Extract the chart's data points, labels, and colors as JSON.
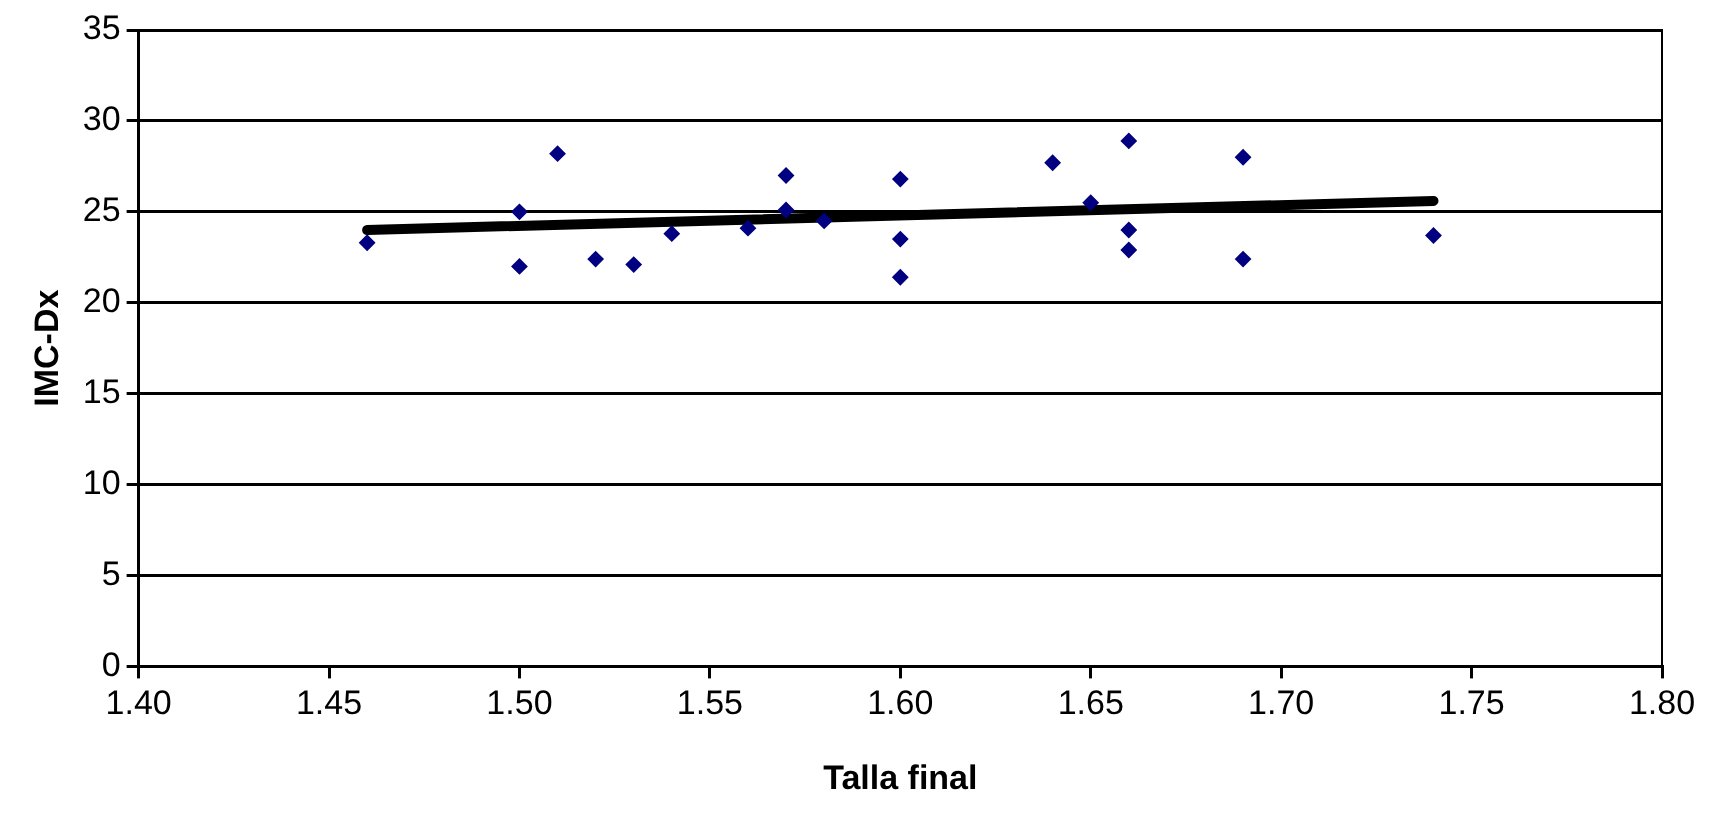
{
  "chart_data": {
    "type": "scatter",
    "xlabel": "Talla final",
    "ylabel": "IMC-Dx",
    "xlim": [
      1.4,
      1.8
    ],
    "xticks": [
      {
        "value": 1.4,
        "label": "1.40"
      },
      {
        "value": 1.45,
        "label": "1.45"
      },
      {
        "value": 1.5,
        "label": "1.50"
      },
      {
        "value": 1.55,
        "label": "1.55"
      },
      {
        "value": 1.6,
        "label": "1.60"
      },
      {
        "value": 1.65,
        "label": "1.65"
      },
      {
        "value": 1.7,
        "label": "1.70"
      },
      {
        "value": 1.75,
        "label": "1.75"
      },
      {
        "value": 1.8,
        "label": "1.80"
      }
    ],
    "ylim": [
      0,
      35
    ],
    "yticks": [
      0,
      5,
      10,
      15,
      20,
      25,
      30,
      35
    ],
    "grid": "y",
    "legend": false,
    "series": [
      {
        "marker": "diamond",
        "color": "#000080",
        "x": [
          1.46,
          1.5,
          1.5,
          1.51,
          1.52,
          1.53,
          1.54,
          1.56,
          1.57,
          1.57,
          1.58,
          1.6,
          1.6,
          1.6,
          1.64,
          1.65,
          1.66,
          1.66,
          1.66,
          1.69,
          1.69,
          1.74
        ],
        "values": [
          23.3,
          25.0,
          22.0,
          28.2,
          22.4,
          22.1,
          23.8,
          24.1,
          27.0,
          25.1,
          24.5,
          26.8,
          23.5,
          21.4,
          27.7,
          25.5,
          28.9,
          24.0,
          22.9,
          28.0,
          22.4,
          23.7
        ]
      },
      {
        "type": "line",
        "marker": "none",
        "color": "#000000",
        "x": [
          1.46,
          1.74
        ],
        "values": [
          24.0,
          25.6
        ]
      }
    ]
  }
}
